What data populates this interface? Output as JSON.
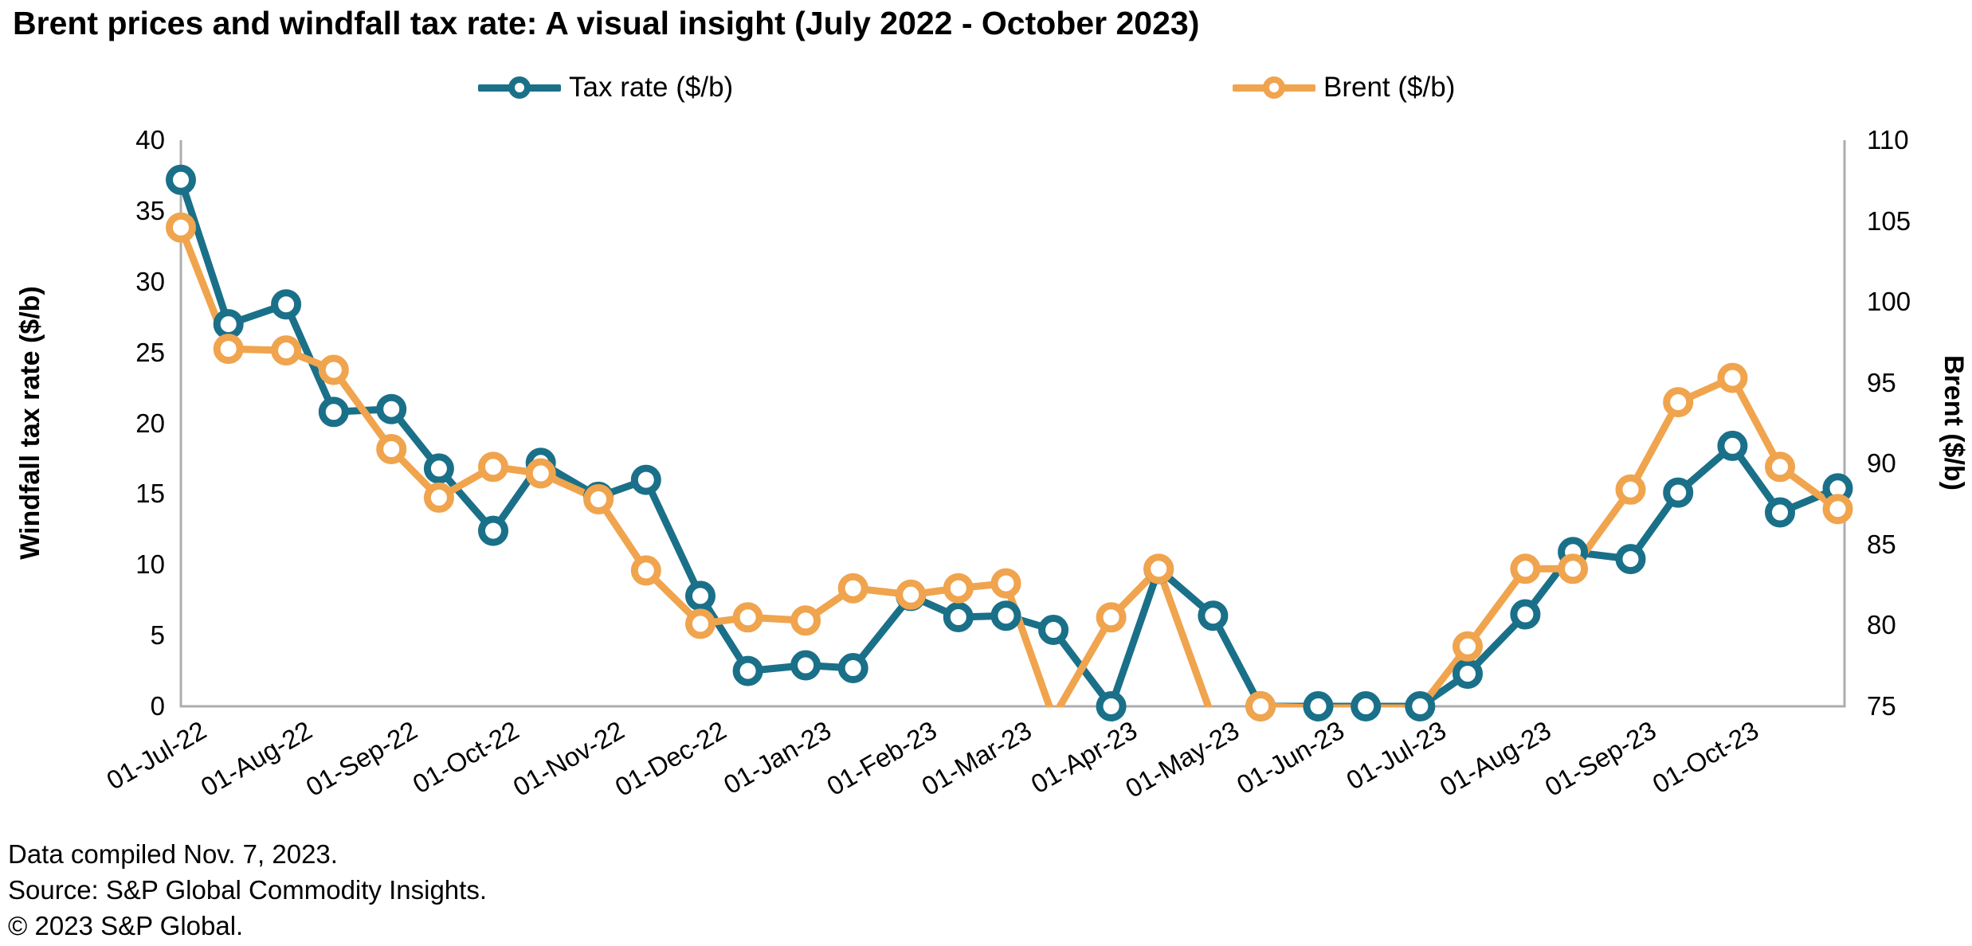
{
  "title": "Brent prices and windfall tax rate: A visual insight (July 2022 - October 2023)",
  "legend": {
    "tax_label": "Tax rate ($/b)",
    "brent_label": "Brent ($/b)"
  },
  "footer": {
    "line1": "Data compiled Nov. 7, 2023.",
    "line2": "Source: S&P Global Commodity Insights.",
    "line3": "© 2023 S&P Global."
  },
  "colors": {
    "tax": "#1A7088",
    "brent": "#F0A44E",
    "axis": "#ADADB0",
    "text": "#000000"
  },
  "chart_data": {
    "type": "line",
    "title": "Brent prices and windfall tax rate: A visual insight (July 2022 - October 2023)",
    "grid": false,
    "legend_position": "top",
    "x": [
      "01-Jul-22",
      "15-Jul-22",
      "01-Aug-22",
      "15-Aug-22",
      "01-Sep-22",
      "15-Sep-22",
      "01-Oct-22",
      "15-Oct-22",
      "01-Nov-22",
      "15-Nov-22",
      "01-Dec-22",
      "15-Dec-22",
      "01-Jan-23",
      "15-Jan-23",
      "01-Feb-23",
      "15-Feb-23",
      "01-Mar-23",
      "15-Mar-23",
      "01-Apr-23",
      "15-Apr-23",
      "01-May-23",
      "15-May-23",
      "01-Jun-23",
      "15-Jun-23",
      "01-Jul-23",
      "15-Jul-23",
      "01-Aug-23",
      "15-Aug-23",
      "01-Sep-23",
      "15-Sep-23",
      "01-Oct-23",
      "15-Oct-23",
      "01-Nov-23"
    ],
    "x_tick_labels": [
      "01-Jul-22",
      "01-Aug-22",
      "01-Sep-22",
      "01-Oct-22",
      "01-Nov-22",
      "01-Dec-22",
      "01-Jan-23",
      "01-Feb-23",
      "01-Mar-23",
      "01-Apr-23",
      "01-May-23",
      "01-Jun-23",
      "01-Jul-23",
      "01-Aug-23",
      "01-Sep-23",
      "01-Oct-23"
    ],
    "y_left": {
      "label": "Windfall tax rate ($/b)",
      "min": 0,
      "max": 40,
      "ticks": [
        0,
        5,
        10,
        15,
        20,
        25,
        30,
        35,
        40
      ]
    },
    "y_right": {
      "label": "Brent ($/b)",
      "min": 75,
      "max": 110,
      "ticks": [
        75,
        80,
        85,
        90,
        95,
        100,
        105,
        110
      ]
    },
    "series": [
      {
        "name": "Tax rate ($/b)",
        "axis": "left",
        "color": "#1A7088",
        "marker": "ring",
        "values": [
          37.2,
          27.0,
          28.4,
          20.8,
          21.0,
          16.8,
          12.4,
          17.2,
          14.8,
          16.0,
          7.8,
          2.5,
          2.9,
          2.7,
          7.8,
          6.3,
          6.4,
          5.4,
          0.0,
          9.7,
          6.4,
          0.0,
          0.0,
          0.0,
          0.0,
          2.3,
          6.5,
          10.9,
          10.4,
          15.1,
          18.4,
          13.7,
          15.4
        ]
      },
      {
        "name": "Brent ($/b)",
        "axis": "right",
        "color": "#F0A44E",
        "marker": "ring",
        "values": [
          104.6,
          97.1,
          97.0,
          95.8,
          90.9,
          87.9,
          89.8,
          89.4,
          87.8,
          83.4,
          80.1,
          80.5,
          80.3,
          82.3,
          81.9,
          82.3,
          82.6,
          74.3,
          80.5,
          83.5,
          74.2,
          75.0,
          74.9,
          74.9,
          74.9,
          78.7,
          83.5,
          83.5,
          88.4,
          93.8,
          95.3,
          89.8,
          87.2
        ]
      }
    ],
    "notes": "Brent values below 75 are clipped at the bottom of the plot area in the original image."
  }
}
